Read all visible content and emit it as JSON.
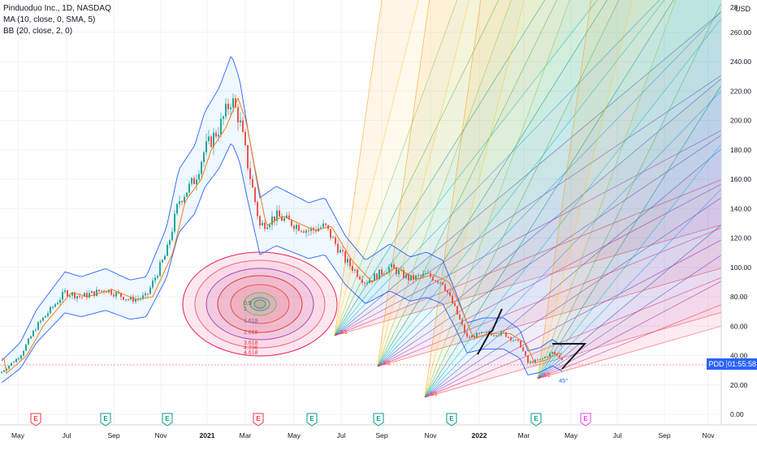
{
  "legend": {
    "symbol_line": "Pinduoduo Inc., 1D, NASDAQ",
    "ma_line": "MA (10, close, 0, SMA, 5)",
    "bb_line": "BB (20, close, 2, 0)"
  },
  "price_axis": {
    "currency": "USD",
    "ticks": [
      "260.00",
      "240.00",
      "220.00",
      "200.00",
      "180.00",
      "160.00",
      "140.00",
      "120.00",
      "100.00",
      "80.00",
      "60.00",
      "40.00",
      "20.00",
      "0.00"
    ],
    "top_partial": "28"
  },
  "time_axis": {
    "ticks": [
      "May",
      "Jul",
      "Sep",
      "Nov",
      "2021",
      "Mar",
      "May",
      "Jul",
      "Sep",
      "Nov",
      "2022",
      "Mar",
      "May",
      "Jul",
      "Sep",
      "Nov"
    ]
  },
  "price_badge": {
    "symbol": "PDD",
    "countdown": "01:55:58",
    "color": "#2962ff"
  },
  "fib_circle_labels": [
    "0.5",
    "1",
    "1.618",
    "2.618",
    "3.618",
    "4.236",
    "4.618"
  ],
  "fan_labels": {
    "ratio": "3/1",
    "angle": "45°"
  },
  "event_markers": [
    {
      "letter": "E",
      "type": "earnings-past",
      "color": "#f23645"
    },
    {
      "letter": "E",
      "type": "earnings",
      "color": "#089981"
    },
    {
      "letter": "E",
      "type": "earnings",
      "color": "#089981"
    },
    {
      "letter": "E",
      "type": "earnings-past",
      "color": "#f23645"
    },
    {
      "letter": "E",
      "type": "earnings",
      "color": "#089981"
    },
    {
      "letter": "E",
      "type": "earnings",
      "color": "#089981"
    },
    {
      "letter": "E",
      "type": "earnings",
      "color": "#089981"
    },
    {
      "letter": "E",
      "type": "earnings",
      "color": "#089981"
    },
    {
      "letter": "E",
      "type": "earnings-upcoming",
      "color": "#e040fb"
    }
  ],
  "colors": {
    "up": "#26a69a",
    "down": "#ef5350",
    "bb": "#2962ff",
    "ma": "#ff6d00"
  }
}
